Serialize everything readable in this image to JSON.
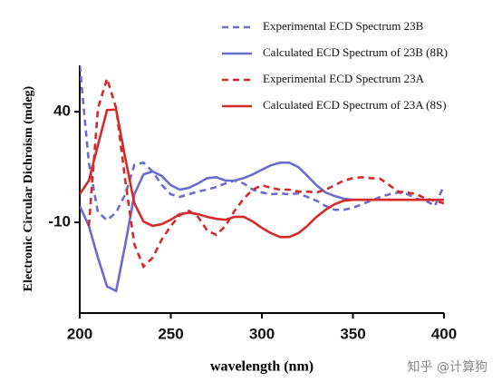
{
  "chart_data": {
    "type": "line",
    "x_label": "wavelength (nm)",
    "y_label": "Electronic Circular Dichroism (mdeg)",
    "x": [
      200,
      205,
      210,
      215,
      220,
      225,
      230,
      235,
      240,
      245,
      250,
      255,
      260,
      265,
      270,
      275,
      280,
      285,
      290,
      295,
      300,
      305,
      310,
      315,
      320,
      325,
      330,
      335,
      340,
      345,
      350,
      355,
      360,
      365,
      370,
      375,
      380,
      385,
      390,
      395,
      400
    ],
    "xlim": [
      200,
      400
    ],
    "xticks": [
      200,
      250,
      300,
      350,
      400
    ],
    "ylim": [
      -51,
      61
    ],
    "yticks": [
      40,
      -10
    ],
    "series": [
      {
        "name": "Experimental  ECD Spectrum 23B",
        "color": "#6a6acf",
        "dashed": true,
        "values": [
          61,
          17,
          -5.5,
          -9,
          -5.5,
          2.7,
          16,
          17,
          13,
          7,
          2.7,
          1.5,
          2.7,
          4,
          4.8,
          6,
          7.6,
          8.9,
          7.6,
          4.8,
          3.5,
          2.7,
          3.1,
          2.7,
          3.1,
          1.5,
          -0.2,
          -2.6,
          -4.3,
          -4.3,
          -3.4,
          -1.8,
          -0.2,
          1.5,
          2.7,
          3.5,
          2.7,
          0.7,
          -0.2,
          -2.6,
          6.8
        ]
      },
      {
        "name": "Calculated ECD Spectrum of 23B (8R)",
        "color": "#6a6acf",
        "dashed": false,
        "values": [
          -2.6,
          -11.6,
          -26,
          -39,
          -41,
          -20,
          2.7,
          11.7,
          13,
          11,
          6.8,
          4.8,
          5.6,
          7.6,
          10,
          10.4,
          8.9,
          8.9,
          10,
          11.7,
          13.8,
          15.8,
          17,
          17,
          15,
          11,
          6.8,
          3.5,
          1.9,
          0.7,
          0.2,
          0.2,
          0.2,
          0.2,
          0.2,
          0.2,
          0.2,
          null,
          null,
          null,
          null
        ]
      },
      {
        "name": "Experimental  ECD Spectrum 23A",
        "color": "#d42a2a",
        "dashed": true,
        "values": [
          null,
          -11.6,
          41.6,
          55,
          41.6,
          8.9,
          -20,
          -30,
          -26,
          -17.8,
          -11.6,
          -6.7,
          -4.8,
          -7.6,
          -13.7,
          -15.7,
          -11.6,
          -4.8,
          0.7,
          4.8,
          6.8,
          5.6,
          4.8,
          4.8,
          3.9,
          3.9,
          3.5,
          4.8,
          6.8,
          8.9,
          10,
          10.4,
          10,
          9.7,
          6.8,
          3.9,
          3.5,
          2.7,
          0.7,
          -0.2,
          -1.4
        ]
      },
      {
        "name": "Calculated ECD Spectrum of 23A (8S)",
        "color": "#d42a2a",
        "dashed": false,
        "values": [
          2.7,
          8.9,
          25,
          40.8,
          41,
          19,
          -1.4,
          -9.6,
          -11.6,
          -10.8,
          -8.8,
          -6.3,
          -5.6,
          -6.3,
          -7.5,
          -8.4,
          -8.8,
          -7.5,
          -7.5,
          -9.6,
          -12.5,
          -14.9,
          -16.6,
          -16.6,
          -14.9,
          -11.6,
          -7.5,
          -4.3,
          -1.8,
          -0.2,
          0.2,
          0.2,
          0.2,
          0.2,
          0.2,
          0.2,
          0.2,
          0.2,
          0.2,
          0.2,
          0.2
        ]
      }
    ],
    "watermark": "知乎 @计算狗"
  }
}
